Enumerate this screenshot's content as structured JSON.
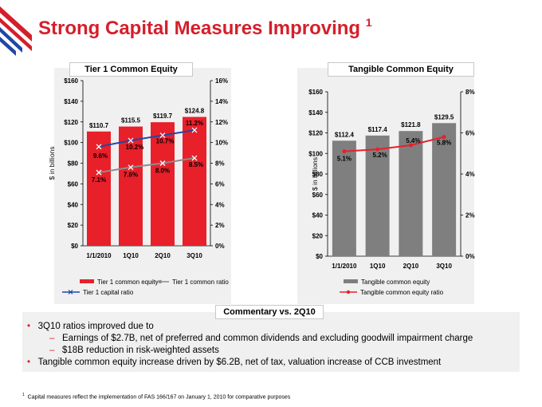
{
  "title": "Strong Capital Measures Improving",
  "title_footnote_mark": "1",
  "colors": {
    "brand_red": "#d41f2b",
    "bar_red": "#e8202a",
    "bar_gray": "#7f7f7f",
    "line_blue": "#2046a8",
    "line_gray": "#8c8c8c",
    "panel_bg": "#f0f0f0"
  },
  "chart_data": [
    {
      "type": "bar",
      "title": "Tier 1 Common Equity",
      "categories": [
        "1/1/2010",
        "1Q10",
        "2Q10",
        "3Q10"
      ],
      "ylabel": "$ in billions",
      "ylim": [
        0,
        160
      ],
      "y_ticks": [
        "$0",
        "$20",
        "$40",
        "$60",
        "$80",
        "$100",
        "$120",
        "$140",
        "$160"
      ],
      "y2lim": [
        0,
        16
      ],
      "y2_ticks": [
        "0%",
        "2%",
        "4%",
        "6%",
        "8%",
        "10%",
        "12%",
        "14%",
        "16%"
      ],
      "series": [
        {
          "name": "Tier 1 common equity",
          "kind": "bar",
          "values": [
            110.7,
            115.5,
            119.7,
            124.8
          ],
          "labels": [
            "$110.7",
            "$115.5",
            "$119.7",
            "$124.8"
          ]
        },
        {
          "name": "Tier 1 common ratio",
          "kind": "line",
          "axis": "right",
          "values": [
            7.1,
            7.6,
            8.0,
            8.5
          ],
          "labels": [
            "7.1%",
            "7.6%",
            "8.0%",
            "8.5%"
          ]
        },
        {
          "name": "Tier 1 capital ratio",
          "kind": "line",
          "axis": "right",
          "values": [
            9.6,
            10.2,
            10.7,
            11.2
          ],
          "labels": [
            "9.6%",
            "10.2%",
            "10.7%",
            "11.2%"
          ]
        }
      ],
      "legend": [
        "Tier 1 common equity",
        "Tier 1 common ratio",
        "Tier 1 capital ratio"
      ]
    },
    {
      "type": "bar",
      "title": "Tangible Common Equity",
      "categories": [
        "1/1/2010",
        "1Q10",
        "2Q10",
        "3Q10"
      ],
      "ylabel": "$ in billions",
      "ylim": [
        0,
        160
      ],
      "y_ticks": [
        "$0",
        "$20",
        "$40",
        "$60",
        "$80",
        "$100",
        "$120",
        "$140",
        "$160"
      ],
      "y2lim": [
        0,
        8
      ],
      "y2_ticks": [
        "0%",
        "2%",
        "4%",
        "6%",
        "8%"
      ],
      "series": [
        {
          "name": "Tangible common equity",
          "kind": "bar",
          "values": [
            112.4,
            117.4,
            121.8,
            129.5
          ],
          "labels": [
            "$112.4",
            "$117.4",
            "$121.8",
            "$129.5"
          ]
        },
        {
          "name": "Tangible common equity ratio",
          "kind": "line",
          "axis": "right",
          "values": [
            5.1,
            5.2,
            5.4,
            5.8
          ],
          "labels": [
            "5.1%",
            "5.2%",
            "5.4%",
            "5.8%"
          ]
        }
      ],
      "legend": [
        "Tangible common equity",
        "Tangible common equity ratio"
      ]
    }
  ],
  "commentary": {
    "title": "Commentary vs. 2Q10",
    "bullets": [
      {
        "text": "3Q10 ratios improved due to",
        "sub": [
          "Earnings of $2.7B, net of preferred and common dividends and excluding goodwill impairment charge",
          "$18B reduction in risk-weighted assets"
        ]
      },
      {
        "text": "Tangible common equity increase driven by $6.2B, net of tax, valuation increase of CCB investment",
        "sub": []
      }
    ]
  },
  "footnote": {
    "mark": "1",
    "text": "Capital measures reflect the implementation of FAS 166/167 on January 1, 2010 for comparative purposes"
  }
}
